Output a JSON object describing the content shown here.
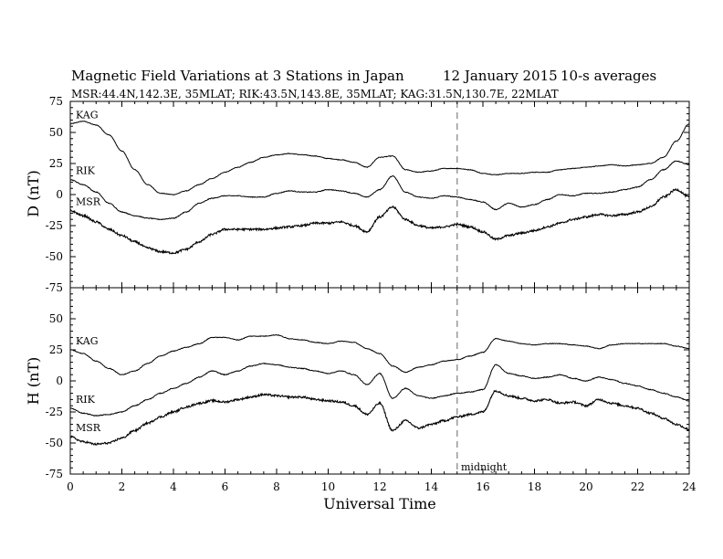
{
  "chart_data": [
    {
      "type": "line",
      "panel": "D",
      "title": "Magnetic Field Variations at 3 Stations in Japan",
      "date": "12 January 2015",
      "averaging": "10-s averages",
      "subtitle": "MSR:44.4N,142.3E, 35MLAT;  RIK:43.5N,143.8E, 35MLAT;  KAG:31.5N,130.7E, 22MLAT",
      "ylabel": "D (nT)",
      "xlabel": "",
      "xlim": [
        0,
        24
      ],
      "ylim": [
        -75,
        75
      ],
      "yticks": [
        75,
        50,
        25,
        0,
        -25,
        -50,
        -75
      ],
      "xticks": [
        0,
        2,
        4,
        6,
        8,
        10,
        12,
        14,
        16,
        18,
        20,
        22,
        24
      ],
      "grid": false,
      "annotations": [
        {
          "text": "midnight",
          "x": 15
        }
      ],
      "series": [
        {
          "name": "KAG",
          "x": [
            0,
            0.5,
            1,
            1.5,
            2,
            2.5,
            3,
            3.5,
            4,
            4.5,
            5,
            5.5,
            6,
            6.5,
            7,
            7.5,
            8,
            8.5,
            9,
            9.5,
            10,
            10.5,
            11,
            11.5,
            12,
            12.5,
            13,
            13.5,
            14,
            14.5,
            15,
            15.5,
            16,
            16.5,
            17,
            17.5,
            18,
            18.5,
            19,
            19.5,
            20,
            20.5,
            21,
            21.5,
            22,
            22.5,
            23,
            23.5,
            24
          ],
          "y": [
            57,
            59,
            56,
            48,
            35,
            20,
            8,
            1,
            0,
            3,
            8,
            13,
            18,
            22,
            26,
            30,
            32,
            33,
            32,
            31,
            29,
            28,
            26,
            22,
            30,
            31,
            20,
            18,
            19,
            21,
            21,
            20,
            17,
            16,
            17,
            17,
            18,
            18,
            20,
            21,
            22,
            23,
            24,
            23,
            24,
            25,
            30,
            43,
            57
          ]
        },
        {
          "name": "RIK",
          "x": [
            0,
            0.5,
            1,
            1.5,
            2,
            2.5,
            3,
            3.5,
            4,
            4.5,
            5,
            5.5,
            6,
            6.5,
            7,
            7.5,
            8,
            8.5,
            9,
            9.5,
            10,
            10.5,
            11,
            11.5,
            12,
            12.5,
            13,
            13.5,
            14,
            14.5,
            15,
            15.5,
            16,
            16.5,
            17,
            17.5,
            18,
            18.5,
            19,
            19.5,
            20,
            20.5,
            21,
            21.5,
            22,
            22.5,
            23,
            23.5,
            24
          ],
          "y": [
            12,
            8,
            2,
            -7,
            -14,
            -17,
            -19,
            -20,
            -19,
            -14,
            -7,
            -3,
            -1,
            -1,
            -2,
            -2,
            1,
            3,
            2,
            2,
            4,
            3,
            1,
            -2,
            4,
            15,
            2,
            -2,
            -3,
            -1,
            -2,
            -4,
            -6,
            -12,
            -7,
            -10,
            -8,
            -4,
            0,
            -1,
            1,
            1,
            2,
            4,
            6,
            12,
            20,
            27,
            24
          ]
        },
        {
          "name": "MSR",
          "x": [
            0,
            0.5,
            1,
            1.5,
            2,
            2.5,
            3,
            3.5,
            4,
            4.5,
            5,
            5.5,
            6,
            6.5,
            7,
            7.5,
            8,
            8.5,
            9,
            9.5,
            10,
            10.5,
            11,
            11.5,
            12,
            12.5,
            13,
            13.5,
            14,
            14.5,
            15,
            15.5,
            16,
            16.5,
            17,
            17.5,
            18,
            18.5,
            19,
            19.5,
            20,
            20.5,
            21,
            21.5,
            22,
            22.5,
            23,
            23.5,
            24
          ],
          "y": [
            -13,
            -17,
            -22,
            -28,
            -33,
            -38,
            -43,
            -46,
            -47,
            -44,
            -38,
            -32,
            -28,
            -28,
            -28,
            -28,
            -27,
            -26,
            -25,
            -23,
            -23,
            -22,
            -25,
            -30,
            -18,
            -10,
            -20,
            -25,
            -27,
            -26,
            -24,
            -26,
            -30,
            -36,
            -33,
            -31,
            -29,
            -26,
            -23,
            -20,
            -18,
            -16,
            -17,
            -16,
            -14,
            -10,
            -2,
            4,
            -2
          ]
        }
      ]
    },
    {
      "type": "line",
      "panel": "H",
      "ylabel": "H (nT)",
      "xlabel": "Universal Time",
      "xlim": [
        0,
        24
      ],
      "ylim": [
        -75,
        75
      ],
      "yticks": [
        50,
        25,
        0,
        -25,
        -50,
        -75
      ],
      "xticks": [
        0,
        2,
        4,
        6,
        8,
        10,
        12,
        14,
        16,
        18,
        20,
        22,
        24
      ],
      "grid": false,
      "series": [
        {
          "name": "KAG",
          "x": [
            0,
            0.5,
            1,
            1.5,
            2,
            2.5,
            3,
            3.5,
            4,
            4.5,
            5,
            5.5,
            6,
            6.5,
            7,
            7.5,
            8,
            8.5,
            9,
            9.5,
            10,
            10.5,
            11,
            11.5,
            12,
            12.5,
            13,
            13.5,
            14,
            14.5,
            15,
            15.5,
            16,
            16.5,
            17,
            17.5,
            18,
            18.5,
            19,
            19.5,
            20,
            20.5,
            21,
            21.5,
            22,
            22.5,
            23,
            23.5,
            24
          ],
          "y": [
            25,
            22,
            16,
            10,
            5,
            8,
            14,
            20,
            24,
            27,
            30,
            35,
            35,
            33,
            36,
            36,
            37,
            34,
            33,
            31,
            30,
            32,
            31,
            26,
            22,
            12,
            7,
            11,
            13,
            16,
            17,
            20,
            23,
            34,
            32,
            30,
            29,
            30,
            30,
            29,
            28,
            26,
            29,
            30,
            30,
            30,
            30,
            28,
            26
          ]
        },
        {
          "name": "RIK",
          "x": [
            0,
            0.5,
            1,
            1.5,
            2,
            2.5,
            3,
            3.5,
            4,
            4.5,
            5,
            5.5,
            6,
            6.5,
            7,
            7.5,
            8,
            8.5,
            9,
            9.5,
            10,
            10.5,
            11,
            11.5,
            12,
            12.5,
            13,
            13.5,
            14,
            14.5,
            15,
            15.5,
            16,
            16.5,
            17,
            17.5,
            18,
            18.5,
            19,
            19.5,
            20,
            20.5,
            21,
            21.5,
            22,
            22.5,
            23,
            23.5,
            24
          ],
          "y": [
            -22,
            -26,
            -28,
            -27,
            -25,
            -20,
            -15,
            -10,
            -6,
            -2,
            3,
            8,
            5,
            8,
            12,
            14,
            13,
            11,
            10,
            8,
            6,
            8,
            5,
            -3,
            6,
            -14,
            -6,
            -12,
            -14,
            -12,
            -10,
            -9,
            -7,
            13,
            6,
            4,
            2,
            3,
            5,
            2,
            0,
            3,
            1,
            -2,
            -4,
            -7,
            -10,
            -13,
            -16
          ]
        },
        {
          "name": "MSR",
          "x": [
            0,
            0.5,
            1,
            1.5,
            2,
            2.5,
            3,
            3.5,
            4,
            4.5,
            5,
            5.5,
            6,
            6.5,
            7,
            7.5,
            8,
            8.5,
            9,
            9.5,
            10,
            10.5,
            11,
            11.5,
            12,
            12.5,
            13,
            13.5,
            14,
            14.5,
            15,
            15.5,
            16,
            16.5,
            17,
            17.5,
            18,
            18.5,
            19,
            19.5,
            20,
            20.5,
            21,
            21.5,
            22,
            22.5,
            23,
            23.5,
            24
          ],
          "y": [
            -45,
            -49,
            -51,
            -50,
            -46,
            -40,
            -34,
            -29,
            -25,
            -21,
            -18,
            -16,
            -17,
            -15,
            -13,
            -11,
            -12,
            -13,
            -13,
            -15,
            -16,
            -17,
            -20,
            -27,
            -18,
            -40,
            -32,
            -38,
            -35,
            -32,
            -29,
            -27,
            -25,
            -8,
            -12,
            -14,
            -16,
            -15,
            -18,
            -17,
            -20,
            -15,
            -18,
            -20,
            -22,
            -26,
            -30,
            -35,
            -39
          ]
        }
      ]
    }
  ]
}
